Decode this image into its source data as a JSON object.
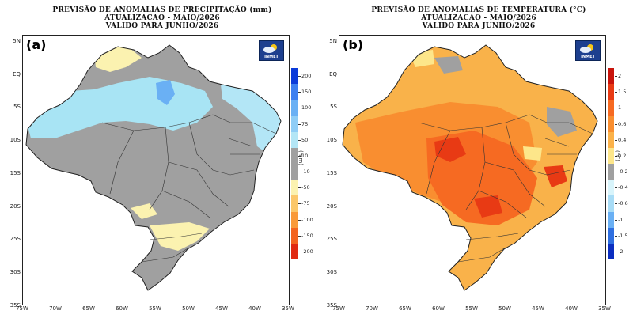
{
  "panels": [
    {
      "letter": "(a)",
      "title_line1": "PREVISÃO DE ANOMALIAS DE PRECIPITAÇÃO (mm)",
      "title_line2": "ATUALIZACAO - MAIO/2026",
      "title_line3": "VALIDO PARA JUNHO/2026",
      "logo_text": "INMET",
      "unit": "(mm)",
      "base_color": "#a0a0a0",
      "colorbar": [
        {
          "label": "200",
          "color": "#0b3bd9"
        },
        {
          "label": "150",
          "color": "#3d7ff0"
        },
        {
          "label": "100",
          "color": "#6ab0f4"
        },
        {
          "label": "75",
          "color": "#8fcdf6"
        },
        {
          "label": "50",
          "color": "#b3e6f6"
        },
        {
          "label": "10",
          "color": "#a0a0a0"
        },
        {
          "label": "-10",
          "color": "#a0a0a0"
        },
        {
          "label": "-50",
          "color": "#fbf2b0"
        },
        {
          "label": "-75",
          "color": "#fbc76a"
        },
        {
          "label": "-100",
          "color": "#f99a3a"
        },
        {
          "label": "-150",
          "color": "#f36420"
        },
        {
          "label": "-200",
          "color": "#e02a12"
        }
      ],
      "regions": [
        {
          "name": "north-amazon-wet",
          "color": "#a8e4f4"
        },
        {
          "name": "northeast-wet",
          "color": "#b3e6f6"
        },
        {
          "name": "roraima-dry",
          "color": "#fbf2b0"
        },
        {
          "name": "south-dry",
          "color": "#fbf2b0"
        },
        {
          "name": "para-wet-core",
          "color": "#6ab0f4"
        }
      ]
    },
    {
      "letter": "(b)",
      "title_line1": "PREVISÃO DE ANOMALIAS DE TEMPERATURA (°C)",
      "title_line2": "ATUALIZACAO - MAIO/2026",
      "title_line3": "VALIDO PARA JUNHO/2026",
      "logo_text": "INMET",
      "unit": "(°C)",
      "base_color": "#f9b24a",
      "colorbar": [
        {
          "label": "2",
          "color": "#c8140c"
        },
        {
          "label": "1.5",
          "color": "#e83a14"
        },
        {
          "label": "1",
          "color": "#f66a22"
        },
        {
          "label": "0.6",
          "color": "#f98e30"
        },
        {
          "label": "0.4",
          "color": "#fbb24a"
        },
        {
          "label": "0.2",
          "color": "#fde68a"
        },
        {
          "label": "-0.2",
          "color": "#a0a0a0"
        },
        {
          "label": "-0.4",
          "color": "#d8f4fb"
        },
        {
          "label": "-0.6",
          "color": "#a8dcf6"
        },
        {
          "label": "-1",
          "color": "#6ab0f4"
        },
        {
          "label": "-1.5",
          "color": "#2f6fe0"
        },
        {
          "label": "-2",
          "color": "#0b2ec0"
        }
      ],
      "regions": [
        {
          "name": "amazon-warm",
          "color": "#f98e30"
        },
        {
          "name": "central-hot",
          "color": "#f66a22"
        },
        {
          "name": "core-hot",
          "color": "#e83a14"
        },
        {
          "name": "neutral-patches",
          "color": "#a0a0a0"
        },
        {
          "name": "light-patches",
          "color": "#fde68a"
        }
      ]
    }
  ],
  "lat_labels": [
    "5N",
    "EQ",
    "5S",
    "10S",
    "15S",
    "20S",
    "25S",
    "30S",
    "35S"
  ],
  "lon_labels": [
    "75W",
    "70W",
    "65W",
    "60W",
    "55W",
    "50W",
    "45W",
    "40W",
    "35W"
  ]
}
